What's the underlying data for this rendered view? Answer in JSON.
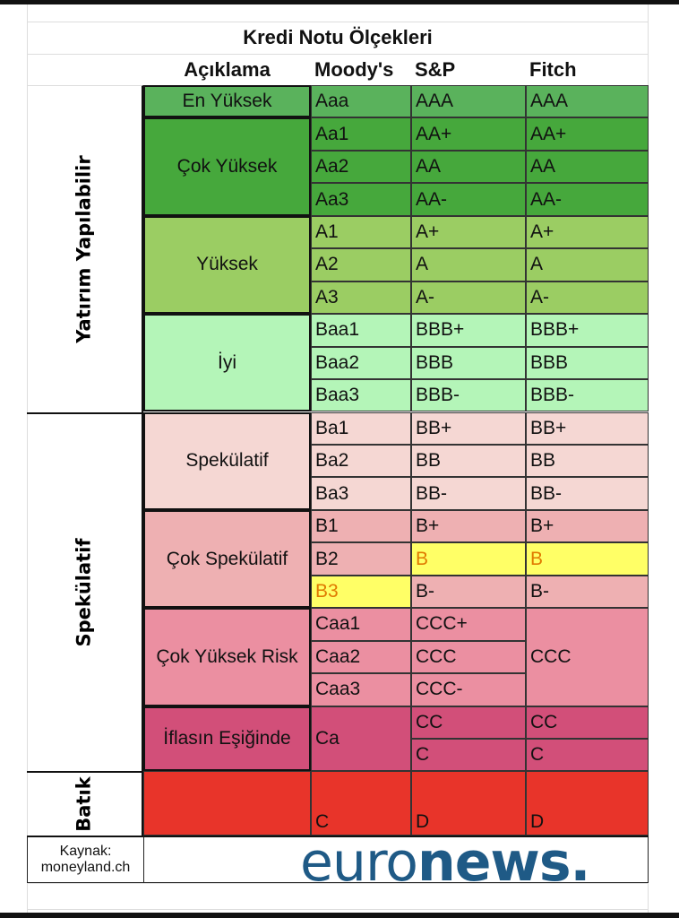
{
  "title": "Kredi Notu Ölçekleri",
  "headers": {
    "description": "Açıklama",
    "moodys": "Moody's",
    "sp": "S&P",
    "fitch": "Fitch"
  },
  "categories": [
    {
      "label": "Yatırım Yapılabilir",
      "rows": 10
    },
    {
      "label": "Spekülatif",
      "rows": 11
    },
    {
      "label": "Batık",
      "rows": 2
    }
  ],
  "groups": [
    {
      "label": "En Yüksek",
      "color": "#5ab25c",
      "count": 1
    },
    {
      "label": "Çok Yüksek",
      "color": "#46a83c",
      "count": 3
    },
    {
      "label": "Yüksek",
      "color": "#9bcd63",
      "count": 3
    },
    {
      "label": "İyi",
      "color": "#b4f5b8",
      "count": 3
    },
    {
      "label": "Spekülatif",
      "color": "#f5d7d3",
      "count": 3
    },
    {
      "label": "Çok Spekülatif",
      "color": "#eeb0b2",
      "count": 3
    },
    {
      "label": "Çok Yüksek Risk",
      "color": "#eb8fa1",
      "count": 3
    },
    {
      "label": "İflasın Eşiğinde",
      "color": "#d24f79",
      "count": 2
    },
    {
      "label": "",
      "color": "#e8342a",
      "count": 2
    }
  ],
  "ratings": [
    {
      "moodys": "Aaa",
      "sp": "AAA",
      "fitch": "AAA"
    },
    {
      "moodys": "Aa1",
      "sp": "AA+",
      "fitch": "AA+"
    },
    {
      "moodys": "Aa2",
      "sp": "AA",
      "fitch": "AA"
    },
    {
      "moodys": "Aa3",
      "sp": "AA-",
      "fitch": "AA-"
    },
    {
      "moodys": "A1",
      "sp": "A+",
      "fitch": "A+"
    },
    {
      "moodys": "A2",
      "sp": "A",
      "fitch": "A"
    },
    {
      "moodys": "A3",
      "sp": "A-",
      "fitch": "A-"
    },
    {
      "moodys": "Baa1",
      "sp": "BBB+",
      "fitch": "BBB+"
    },
    {
      "moodys": "Baa2",
      "sp": "BBB",
      "fitch": "BBB"
    },
    {
      "moodys": "Baa3",
      "sp": "BBB-",
      "fitch": "BBB-"
    },
    {
      "moodys": "Ba1",
      "sp": "BB+",
      "fitch": "BB+"
    },
    {
      "moodys": "Ba2",
      "sp": "BB",
      "fitch": "BB"
    },
    {
      "moodys": "Ba3",
      "sp": "BB-",
      "fitch": "BB-"
    },
    {
      "moodys": "B1",
      "sp": "B+",
      "fitch": "B+"
    },
    {
      "moodys": "B2",
      "sp": "B",
      "fitch": "B",
      "highlight": [
        "sp",
        "fitch"
      ]
    },
    {
      "moodys": "B3",
      "sp": "B-",
      "fitch": "B-",
      "highlight": [
        "moodys"
      ]
    },
    {
      "moodys": "Caa1",
      "sp": "CCC+",
      "fitch": "CCC"
    },
    {
      "moodys": "Caa2",
      "sp": "CCC",
      "fitch": null
    },
    {
      "moodys": "Caa3",
      "sp": "CCC-",
      "fitch": null
    },
    {
      "moodys": "Ca",
      "sp": "CC",
      "fitch": "CC"
    },
    {
      "moodys": null,
      "sp": "C",
      "fitch": "C"
    },
    {
      "moodys": "C",
      "sp": "D",
      "fitch": "D"
    },
    {
      "moodys": null,
      "sp": null,
      "fitch": null
    }
  ],
  "footer": {
    "source_label": "Kaynak:",
    "source_value": "moneyland.ch",
    "logo_text": "euronews."
  },
  "highlight_color": "#ffff66"
}
